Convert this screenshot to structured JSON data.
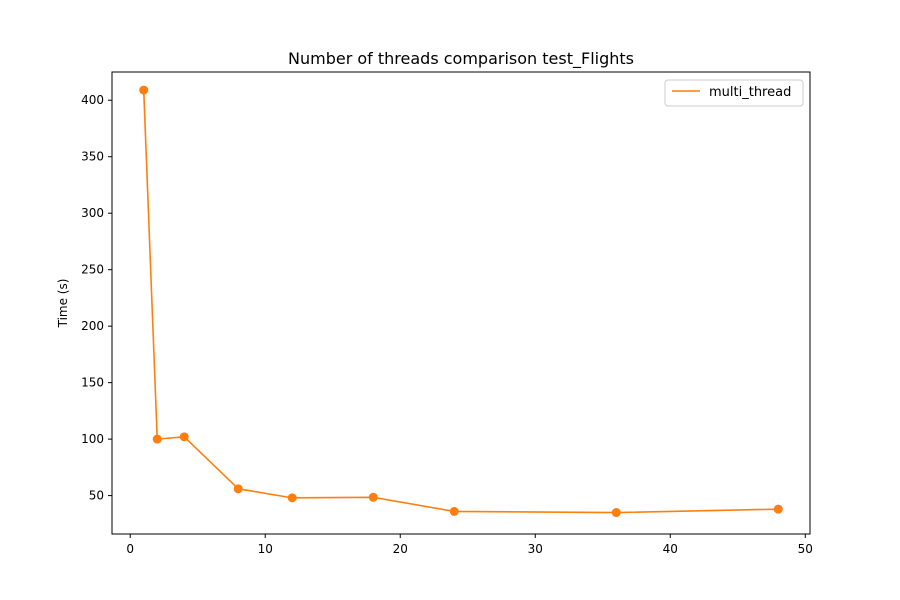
{
  "chart_data": {
    "type": "line",
    "title": "Number of threads comparison test_Flights",
    "xlabel": "",
    "ylabel": "Time (s)",
    "xlim": [
      -1.35,
      50.35
    ],
    "ylim": [
      16,
      425
    ],
    "x_ticks": [
      0,
      10,
      20,
      30,
      40,
      50
    ],
    "y_ticks": [
      50,
      100,
      150,
      200,
      250,
      300,
      350,
      400
    ],
    "grid": false,
    "legend_position": "top-right",
    "series": [
      {
        "name": "multi_thread",
        "color": "#ff7f0e",
        "marker": "circle",
        "x": [
          1,
          2,
          4,
          8,
          12,
          18,
          24,
          36,
          48
        ],
        "y": [
          409,
          100,
          102,
          56,
          48,
          48.5,
          36,
          35,
          38
        ]
      }
    ]
  }
}
